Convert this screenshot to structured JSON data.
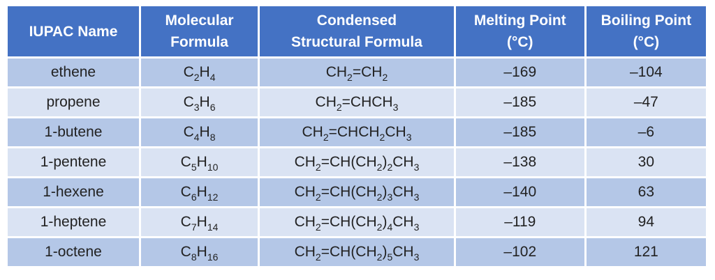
{
  "headers": [
    {
      "line1": "IUPAC Name",
      "line2": ""
    },
    {
      "line1": "Molecular",
      "line2": "Formula"
    },
    {
      "line1": "Condensed",
      "line2": "Structural Formula"
    },
    {
      "line1": "Melting Point",
      "line2": "(°C)"
    },
    {
      "line1": "Boiling Point",
      "line2": "(°C)"
    }
  ],
  "rows": [
    {
      "name": "ethene",
      "molecular": [
        {
          "t": "C"
        },
        {
          "s": "2"
        },
        {
          "t": "H"
        },
        {
          "s": "4"
        }
      ],
      "structural": [
        {
          "t": "CH"
        },
        {
          "s": "2"
        },
        {
          "t": "=CH"
        },
        {
          "s": "2"
        }
      ],
      "melting": "–169",
      "boiling": "–104"
    },
    {
      "name": "propene",
      "molecular": [
        {
          "t": "C"
        },
        {
          "s": "3"
        },
        {
          "t": "H"
        },
        {
          "s": "6"
        }
      ],
      "structural": [
        {
          "t": "CH"
        },
        {
          "s": "2"
        },
        {
          "t": "=CHCH"
        },
        {
          "s": "3"
        }
      ],
      "melting": "–185",
      "boiling": "–47"
    },
    {
      "name": "1-butene",
      "molecular": [
        {
          "t": "C"
        },
        {
          "s": "4"
        },
        {
          "t": "H"
        },
        {
          "s": "8"
        }
      ],
      "structural": [
        {
          "t": "CH"
        },
        {
          "s": "2"
        },
        {
          "t": "=CHCH"
        },
        {
          "s": "2"
        },
        {
          "t": "CH"
        },
        {
          "s": "3"
        }
      ],
      "melting": "–185",
      "boiling": "–6"
    },
    {
      "name": "1-pentene",
      "molecular": [
        {
          "t": "C"
        },
        {
          "s": "5"
        },
        {
          "t": "H"
        },
        {
          "s": "10"
        }
      ],
      "structural": [
        {
          "t": "CH"
        },
        {
          "s": "2"
        },
        {
          "t": "=CH(CH"
        },
        {
          "s": "2"
        },
        {
          "t": ")"
        },
        {
          "s": "2"
        },
        {
          "t": "CH"
        },
        {
          "s": "3"
        }
      ],
      "melting": "–138",
      "boiling": "30"
    },
    {
      "name": "1-hexene",
      "molecular": [
        {
          "t": "C"
        },
        {
          "s": "6"
        },
        {
          "t": "H"
        },
        {
          "s": "12"
        }
      ],
      "structural": [
        {
          "t": "CH"
        },
        {
          "s": "2"
        },
        {
          "t": "=CH(CH"
        },
        {
          "s": "2"
        },
        {
          "t": ")"
        },
        {
          "s": "3"
        },
        {
          "t": "CH"
        },
        {
          "s": "3"
        }
      ],
      "melting": "–140",
      "boiling": "63"
    },
    {
      "name": "1-heptene",
      "molecular": [
        {
          "t": "C"
        },
        {
          "s": "7"
        },
        {
          "t": "H"
        },
        {
          "s": "14"
        }
      ],
      "structural": [
        {
          "t": "CH"
        },
        {
          "s": "2"
        },
        {
          "t": "=CH(CH"
        },
        {
          "s": "2"
        },
        {
          "t": ")"
        },
        {
          "s": "4"
        },
        {
          "t": "CH"
        },
        {
          "s": "3"
        }
      ],
      "melting": "–119",
      "boiling": "94"
    },
    {
      "name": "1-octene",
      "molecular": [
        {
          "t": "C"
        },
        {
          "s": "8"
        },
        {
          "t": "H"
        },
        {
          "s": "16"
        }
      ],
      "structural": [
        {
          "t": "CH"
        },
        {
          "s": "2"
        },
        {
          "t": "=CH(CH"
        },
        {
          "s": "2"
        },
        {
          "t": ")"
        },
        {
          "s": "5"
        },
        {
          "t": "CH"
        },
        {
          "s": "3"
        }
      ],
      "melting": "–102",
      "boiling": "121"
    }
  ],
  "colors": {
    "header_bg": "#4472c4",
    "row_odd_bg": "#b4c7e7",
    "row_even_bg": "#dae3f3"
  }
}
